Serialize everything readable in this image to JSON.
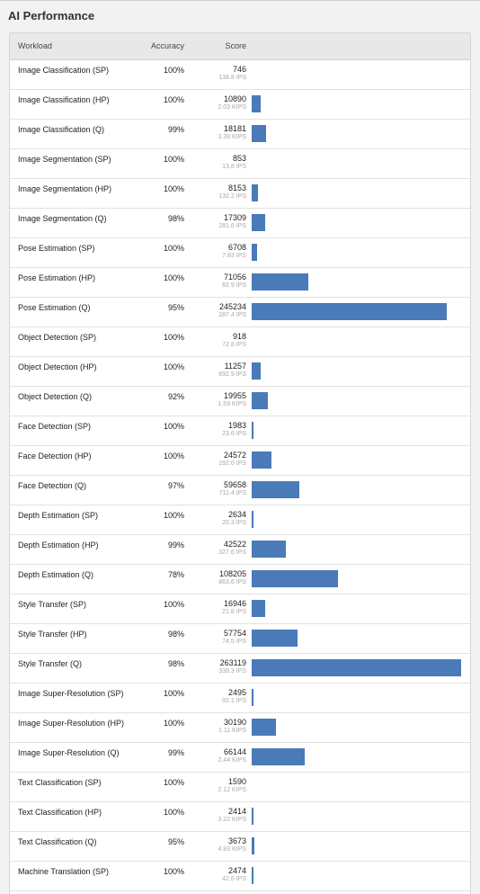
{
  "section": {
    "title": "AI Performance"
  },
  "table": {
    "columns": {
      "workload": "Workload",
      "accuracy": "Accuracy",
      "score": "Score"
    },
    "bar_color": "#4a7ab8",
    "bar_max_score": 263119,
    "rows": [
      {
        "workload": "Image Classification (SP)",
        "accuracy": "100%",
        "score": 746,
        "score_label": "746",
        "rate": "138.8 IPS"
      },
      {
        "workload": "Image Classification (HP)",
        "accuracy": "100%",
        "score": 10890,
        "score_label": "10890",
        "rate": "2.03 KIPS"
      },
      {
        "workload": "Image Classification (Q)",
        "accuracy": "99%",
        "score": 18181,
        "score_label": "18181",
        "rate": "3.39 KIPS"
      },
      {
        "workload": "Image Segmentation (SP)",
        "accuracy": "100%",
        "score": 853,
        "score_label": "853",
        "rate": "13.8 IPS"
      },
      {
        "workload": "Image Segmentation (HP)",
        "accuracy": "100%",
        "score": 8153,
        "score_label": "8153",
        "rate": "132.2 IPS"
      },
      {
        "workload": "Image Segmentation (Q)",
        "accuracy": "98%",
        "score": 17309,
        "score_label": "17309",
        "rate": "281.6 IPS"
      },
      {
        "workload": "Pose Estimation (SP)",
        "accuracy": "100%",
        "score": 6708,
        "score_label": "6708",
        "rate": "7.83 IPS"
      },
      {
        "workload": "Pose Estimation (HP)",
        "accuracy": "100%",
        "score": 71056,
        "score_label": "71056",
        "rate": "82.9 IPS"
      },
      {
        "workload": "Pose Estimation (Q)",
        "accuracy": "95%",
        "score": 245234,
        "score_label": "245234",
        "rate": "287.4 IPS"
      },
      {
        "workload": "Object Detection (SP)",
        "accuracy": "100%",
        "score": 918,
        "score_label": "918",
        "rate": "72.8 IPS"
      },
      {
        "workload": "Object Detection (HP)",
        "accuracy": "100%",
        "score": 11257,
        "score_label": "11257",
        "rate": "892.9 IPS"
      },
      {
        "workload": "Object Detection (Q)",
        "accuracy": "92%",
        "score": 19955,
        "score_label": "19955",
        "rate": "1.59 KIPS"
      },
      {
        "workload": "Face Detection (SP)",
        "accuracy": "100%",
        "score": 1983,
        "score_label": "1983",
        "rate": "23.6 IPS"
      },
      {
        "workload": "Face Detection (HP)",
        "accuracy": "100%",
        "score": 24572,
        "score_label": "24572",
        "rate": "292.0 IPS"
      },
      {
        "workload": "Face Detection (Q)",
        "accuracy": "97%",
        "score": 59658,
        "score_label": "59658",
        "rate": "711.4 IPS"
      },
      {
        "workload": "Depth Estimation (SP)",
        "accuracy": "100%",
        "score": 2634,
        "score_label": "2634",
        "rate": "20.3 IPS"
      },
      {
        "workload": "Depth Estimation (HP)",
        "accuracy": "99%",
        "score": 42522,
        "score_label": "42522",
        "rate": "327.6 IPS"
      },
      {
        "workload": "Depth Estimation (Q)",
        "accuracy": "78%",
        "score": 108205,
        "score_label": "108205",
        "rate": "863.6 IPS"
      },
      {
        "workload": "Style Transfer (SP)",
        "accuracy": "100%",
        "score": 16946,
        "score_label": "16946",
        "rate": "21.8 IPS"
      },
      {
        "workload": "Style Transfer (HP)",
        "accuracy": "98%",
        "score": 57754,
        "score_label": "57754",
        "rate": "74.5 IPS"
      },
      {
        "workload": "Style Transfer (Q)",
        "accuracy": "98%",
        "score": 263119,
        "score_label": "263119",
        "rate": "339.3 IPS"
      },
      {
        "workload": "Image Super-Resolution (SP)",
        "accuracy": "100%",
        "score": 2495,
        "score_label": "2495",
        "rate": "92.1 IPS"
      },
      {
        "workload": "Image Super-Resolution (HP)",
        "accuracy": "100%",
        "score": 30190,
        "score_label": "30190",
        "rate": "1.11 KIPS"
      },
      {
        "workload": "Image Super-Resolution (Q)",
        "accuracy": "99%",
        "score": 66144,
        "score_label": "66144",
        "rate": "2.44 KIPS"
      },
      {
        "workload": "Text Classification (SP)",
        "accuracy": "100%",
        "score": 1590,
        "score_label": "1590",
        "rate": "2.12 KIPS"
      },
      {
        "workload": "Text Classification (HP)",
        "accuracy": "100%",
        "score": 2414,
        "score_label": "2414",
        "rate": "3.22 KIPS"
      },
      {
        "workload": "Text Classification (Q)",
        "accuracy": "95%",
        "score": 3673,
        "score_label": "3673",
        "rate": "4.93 KIPS"
      },
      {
        "workload": "Machine Translation (SP)",
        "accuracy": "100%",
        "score": 2474,
        "score_label": "2474",
        "rate": "42.6 IPS"
      }
    ]
  }
}
